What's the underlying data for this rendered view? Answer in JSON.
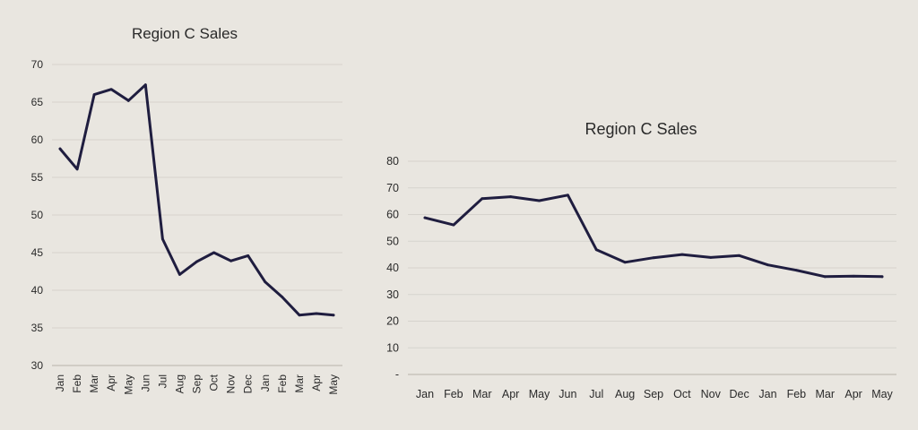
{
  "chart_data": [
    {
      "type": "line",
      "title": "Region C Sales",
      "xlabel": "",
      "ylabel": "",
      "categories": [
        "Jan",
        "Feb",
        "Mar",
        "Apr",
        "May",
        "Jun",
        "Jul",
        "Aug",
        "Sep",
        "Oct",
        "Nov",
        "Dec",
        "Jan",
        "Feb",
        "Mar",
        "Apr",
        "May"
      ],
      "series": [
        {
          "values": [
            58.8,
            56.1,
            66.0,
            66.7,
            65.2,
            67.3,
            46.8,
            42.1,
            43.8,
            45.0,
            43.9,
            44.6,
            41.1,
            39.1,
            36.7,
            36.9,
            36.7
          ]
        }
      ],
      "ylim": [
        30,
        70
      ],
      "yticks": [
        "30",
        "35",
        "40",
        "45",
        "50",
        "55",
        "60",
        "65",
        "70"
      ],
      "grid": true,
      "legend": "none"
    },
    {
      "type": "line",
      "title": "Region C Sales",
      "xlabel": "",
      "ylabel": "",
      "categories": [
        "Jan",
        "Feb",
        "Mar",
        "Apr",
        "May",
        "Jun",
        "Jul",
        "Aug",
        "Sep",
        "Oct",
        "Nov",
        "Dec",
        "Jan",
        "Feb",
        "Mar",
        "Apr",
        "May"
      ],
      "series": [
        {
          "values": [
            58.8,
            56.1,
            66.0,
            66.7,
            65.2,
            67.3,
            46.8,
            42.1,
            43.8,
            45.0,
            43.9,
            44.6,
            41.1,
            39.1,
            36.7,
            36.9,
            36.7
          ]
        }
      ],
      "ylim": [
        0,
        80
      ],
      "yticks": [
        "-",
        "10",
        "20",
        "30",
        "40",
        "50",
        "60",
        "70",
        "80"
      ],
      "grid": true,
      "legend": "none"
    }
  ],
  "colors": {
    "line": "#1f1d3f",
    "grid": "#d6d3cd",
    "axis": "#c7c3bc",
    "text": "#2a2a2a"
  }
}
